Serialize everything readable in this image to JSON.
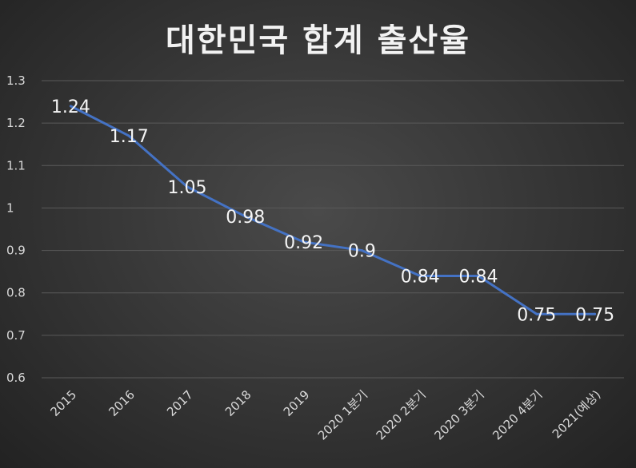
{
  "chart_data": {
    "type": "line",
    "title": "대한민국 합계 출산율",
    "xlabel": "",
    "ylabel": "",
    "categories": [
      "2015",
      "2016",
      "2017",
      "2018",
      "2019",
      "2020 1분기",
      "2020 2분기",
      "2020 3분기",
      "2020 4분기",
      "2021(예상)"
    ],
    "series": [
      {
        "values": [
          1.24,
          1.17,
          1.05,
          0.98,
          0.92,
          0.9,
          0.84,
          0.84,
          0.75,
          0.75
        ],
        "labels": [
          "1.24",
          "1.17",
          "1.05",
          "0.98",
          "0.92",
          "0.9",
          "0.84",
          "0.84",
          "0.75",
          "0.75"
        ]
      }
    ],
    "ylim": [
      0.6,
      1.3
    ],
    "yticks": [
      "0.6",
      "0.7",
      "0.8",
      "0.9",
      "1",
      "1.1",
      "1.2",
      "1.3"
    ],
    "grid": true,
    "legend": "none",
    "colors": {
      "line": "#4472c4",
      "grid": "#5a5a5a",
      "text": "#d9d9d9"
    }
  }
}
